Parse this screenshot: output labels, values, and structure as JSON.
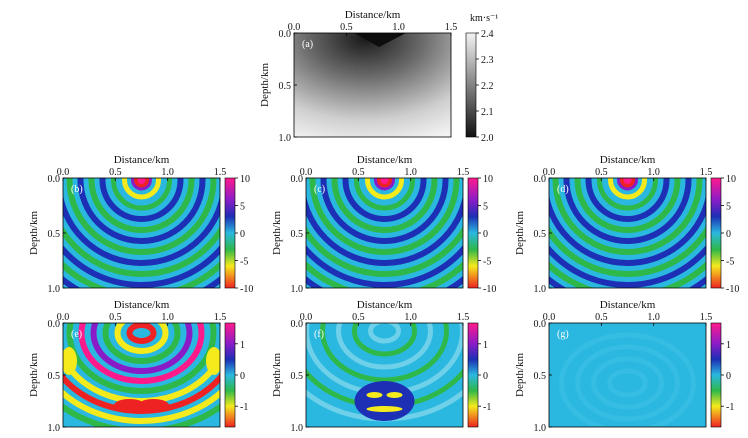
{
  "figure": {
    "axis": {
      "xlabel": "Distance/km",
      "ylabel": "Depth/km",
      "xticks": [
        "0.0",
        "0.5",
        "1.0",
        "1.5"
      ],
      "yticks": [
        "0.0",
        "0.5",
        "1.0"
      ]
    },
    "panels": [
      {
        "id": "a",
        "label": "(a)",
        "kind": "velocity",
        "colorbar": {
          "unit": "km·s⁻¹",
          "ticks": [
            "2.4",
            "2.3",
            "2.2",
            "2.1",
            "2.0"
          ]
        }
      },
      {
        "id": "b",
        "label": "(b)",
        "kind": "wavefield",
        "colorbar": {
          "ticks": [
            "10",
            "5",
            "0",
            "-5",
            "-10"
          ]
        }
      },
      {
        "id": "c",
        "label": "(c)",
        "kind": "wavefield",
        "colorbar": {
          "ticks": [
            "10",
            "5",
            "0",
            "-5",
            "-10"
          ]
        }
      },
      {
        "id": "d",
        "label": "(d)",
        "kind": "wavefield",
        "colorbar": {
          "ticks": [
            "10",
            "5",
            "0",
            "-5",
            "-10"
          ]
        }
      },
      {
        "id": "e",
        "label": "(e)",
        "kind": "residual-strong",
        "colorbar": {
          "ticks": [
            "1",
            "0",
            "-1"
          ]
        }
      },
      {
        "id": "f",
        "label": "(f)",
        "kind": "residual-medium",
        "colorbar": {
          "ticks": [
            "1",
            "0",
            "-1"
          ]
        }
      },
      {
        "id": "g",
        "label": "(g)",
        "kind": "residual-weak",
        "colorbar": {
          "ticks": [
            "1",
            "0",
            "-1"
          ]
        }
      }
    ]
  }
}
